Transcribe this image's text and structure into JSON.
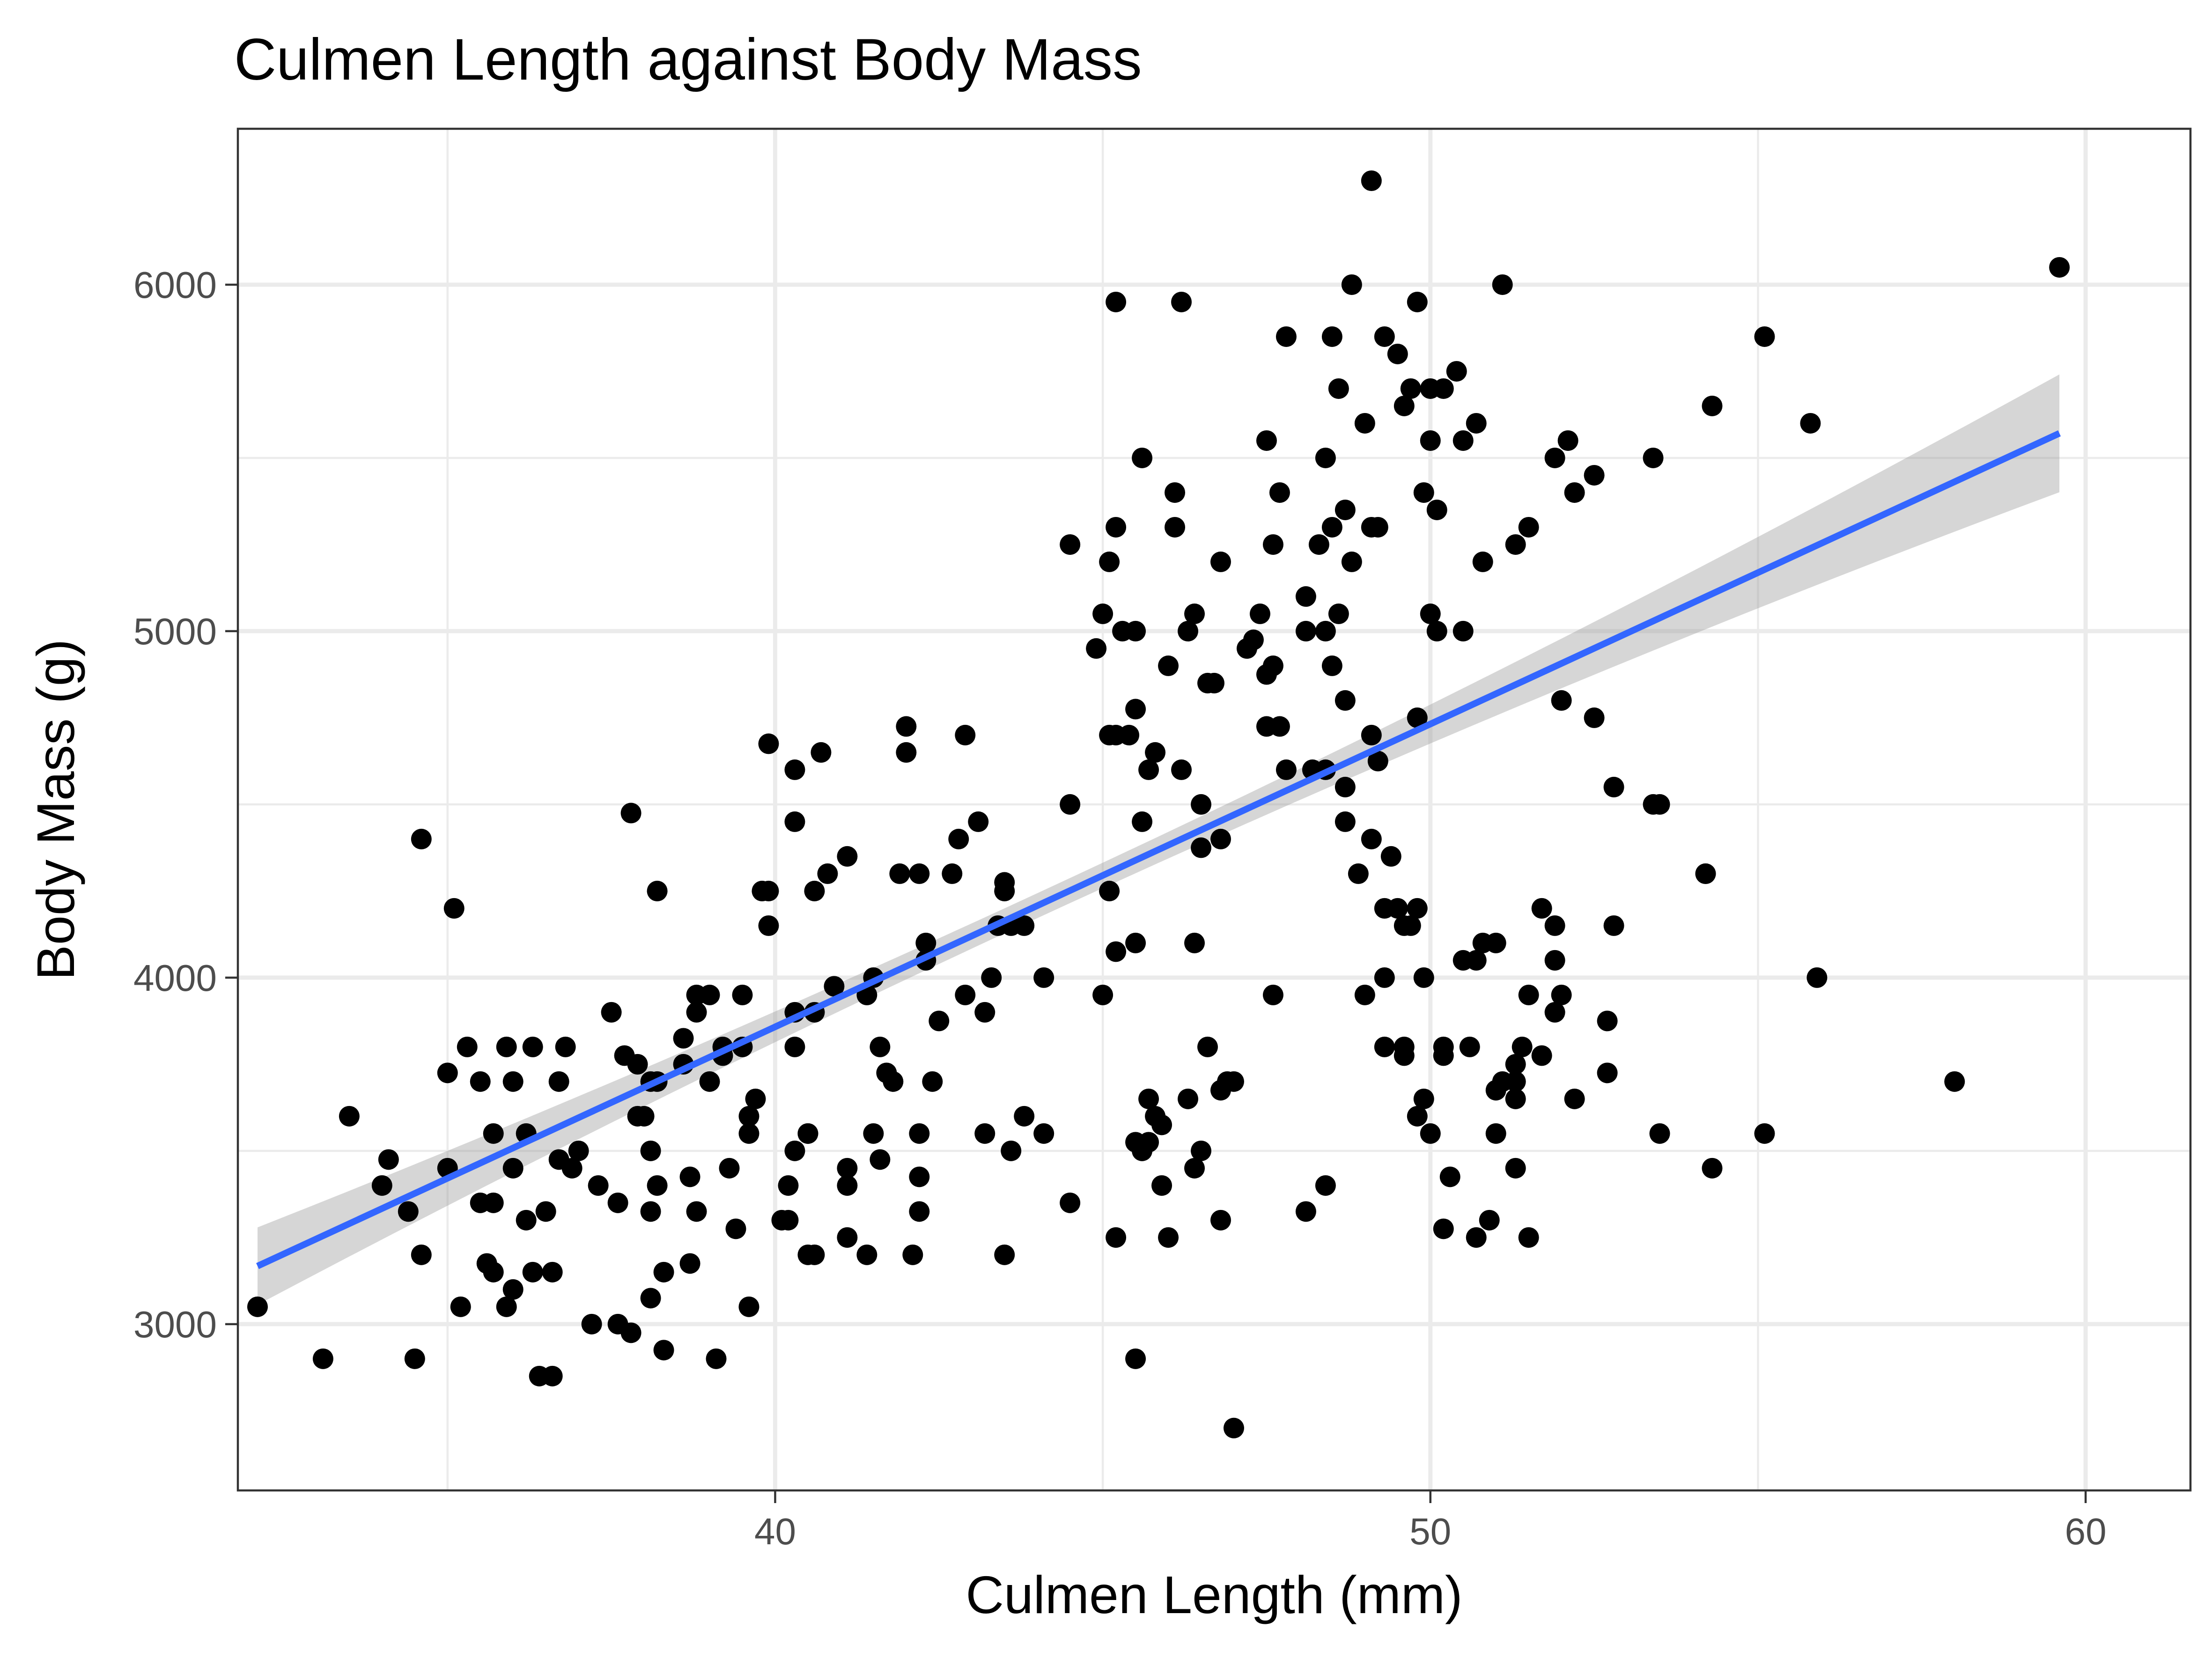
{
  "chart_data": {
    "type": "scatter",
    "title": "Culmen Length against Body Mass",
    "xlabel": "Culmen Length (mm)",
    "ylabel": "Body Mass (g)",
    "xlim": [
      31.8,
      61.6
    ],
    "ylim": [
      2520,
      6450
    ],
    "xticks": [
      40,
      50,
      60
    ],
    "xtick_labels": [
      "40",
      "50",
      "60"
    ],
    "yticks": [
      3000,
      4000,
      5000,
      6000
    ],
    "ytick_labels": [
      "3000",
      "4000",
      "5000",
      "6000"
    ],
    "grid": true,
    "legend": "none",
    "points": [
      [
        32.1,
        3050
      ],
      [
        33.1,
        2900
      ],
      [
        33.5,
        3600
      ],
      [
        34.0,
        3400
      ],
      [
        34.1,
        3475
      ],
      [
        34.4,
        3325
      ],
      [
        34.5,
        2900
      ],
      [
        34.6,
        4400
      ],
      [
        34.6,
        3200
      ],
      [
        35.0,
        3725
      ],
      [
        35.0,
        3450
      ],
      [
        35.1,
        4200
      ],
      [
        35.2,
        3050
      ],
      [
        35.3,
        3800
      ],
      [
        35.5,
        3700
      ],
      [
        35.5,
        3350
      ],
      [
        35.6,
        3175
      ],
      [
        35.7,
        3150
      ],
      [
        35.7,
        3550
      ],
      [
        35.7,
        3350
      ],
      [
        35.9,
        3050
      ],
      [
        35.9,
        3800
      ],
      [
        36.0,
        3100
      ],
      [
        36.0,
        3450
      ],
      [
        36.0,
        3700
      ],
      [
        36.2,
        3550
      ],
      [
        36.2,
        3300
      ],
      [
        36.3,
        3150
      ],
      [
        36.3,
        3800
      ],
      [
        36.4,
        2850
      ],
      [
        36.5,
        3325
      ],
      [
        36.6,
        2850
      ],
      [
        36.6,
        3150
      ],
      [
        36.7,
        3700
      ],
      [
        36.7,
        3475
      ],
      [
        36.8,
        3800
      ],
      [
        36.9,
        3450
      ],
      [
        37.0,
        3500
      ],
      [
        37.2,
        3000
      ],
      [
        37.3,
        3400
      ],
      [
        37.5,
        3900
      ],
      [
        37.6,
        3350
      ],
      [
        37.6,
        3000
      ],
      [
        37.7,
        3775
      ],
      [
        37.8,
        2975
      ],
      [
        37.8,
        4475
      ],
      [
        37.9,
        3750
      ],
      [
        37.9,
        3600
      ],
      [
        38.0,
        3600
      ],
      [
        38.1,
        3075
      ],
      [
        38.1,
        3500
      ],
      [
        38.1,
        3325
      ],
      [
        38.1,
        3700
      ],
      [
        38.2,
        3400
      ],
      [
        38.2,
        4250
      ],
      [
        38.2,
        3700
      ],
      [
        38.3,
        3150
      ],
      [
        38.3,
        2925
      ],
      [
        38.6,
        3750
      ],
      [
        38.6,
        3825
      ],
      [
        38.7,
        3425
      ],
      [
        38.7,
        3175
      ],
      [
        38.8,
        3950
      ],
      [
        38.8,
        3900
      ],
      [
        38.8,
        3325
      ],
      [
        39.0,
        3950
      ],
      [
        39.0,
        3700
      ],
      [
        39.1,
        2900
      ],
      [
        39.2,
        3800
      ],
      [
        39.2,
        3775
      ],
      [
        39.3,
        3450
      ],
      [
        39.4,
        3275
      ],
      [
        39.5,
        3800
      ],
      [
        39.5,
        3950
      ],
      [
        39.6,
        3050
      ],
      [
        39.6,
        3550
      ],
      [
        39.6,
        3600
      ],
      [
        39.7,
        3650
      ],
      [
        39.8,
        4250
      ],
      [
        39.9,
        4150
      ],
      [
        39.9,
        4675
      ],
      [
        39.9,
        4250
      ],
      [
        40.1,
        3300
      ],
      [
        40.2,
        3400
      ],
      [
        40.2,
        3300
      ],
      [
        40.3,
        3900
      ],
      [
        40.3,
        3800
      ],
      [
        40.3,
        4600
      ],
      [
        40.3,
        4450
      ],
      [
        40.3,
        3500
      ],
      [
        40.5,
        3550
      ],
      [
        40.5,
        3550
      ],
      [
        40.5,
        3200
      ],
      [
        40.6,
        3900
      ],
      [
        40.6,
        3200
      ],
      [
        40.6,
        4250
      ],
      [
        40.7,
        4650
      ],
      [
        40.8,
        4300
      ],
      [
        40.9,
        3975
      ],
      [
        41.1,
        3450
      ],
      [
        41.1,
        3400
      ],
      [
        41.1,
        3250
      ],
      [
        41.1,
        4350
      ],
      [
        41.4,
        3200
      ],
      [
        41.4,
        3950
      ],
      [
        41.5,
        4000
      ],
      [
        41.5,
        3550
      ],
      [
        41.6,
        3475
      ],
      [
        41.6,
        3800
      ],
      [
        41.7,
        3725
      ],
      [
        41.8,
        3700
      ],
      [
        41.9,
        4300
      ],
      [
        42.0,
        4650
      ],
      [
        42.0,
        4725
      ],
      [
        42.1,
        3200
      ],
      [
        42.2,
        3325
      ],
      [
        42.2,
        4300
      ],
      [
        42.2,
        3425
      ],
      [
        42.2,
        3550
      ],
      [
        42.3,
        4050
      ],
      [
        42.3,
        4100
      ],
      [
        42.4,
        3700
      ],
      [
        42.5,
        3875
      ],
      [
        42.7,
        4300
      ],
      [
        42.8,
        4400
      ],
      [
        42.9,
        4700
      ],
      [
        42.9,
        3950
      ],
      [
        43.1,
        4450
      ],
      [
        43.2,
        3900
      ],
      [
        43.2,
        3550
      ],
      [
        43.3,
        4000
      ],
      [
        43.4,
        4150
      ],
      [
        43.5,
        4250
      ],
      [
        43.5,
        3200
      ],
      [
        43.5,
        4275
      ],
      [
        43.6,
        3500
      ],
      [
        43.6,
        4150
      ],
      [
        43.8,
        4150
      ],
      [
        43.8,
        3600
      ],
      [
        44.1,
        4000
      ],
      [
        44.1,
        3550
      ],
      [
        44.5,
        3350
      ],
      [
        44.5,
        4500
      ],
      [
        44.9,
        4950
      ],
      [
        45.0,
        3950
      ],
      [
        45.1,
        4250
      ],
      [
        45.1,
        4700
      ],
      [
        45.2,
        4700
      ],
      [
        45.2,
        4075
      ],
      [
        45.3,
        5000
      ],
      [
        45.4,
        4700
      ],
      [
        45.5,
        4775
      ],
      [
        45.5,
        2900
      ],
      [
        45.5,
        4100
      ],
      [
        45.6,
        4450
      ],
      [
        45.7,
        4600
      ],
      [
        45.8,
        4650
      ],
      [
        45.9,
        3400
      ],
      [
        46.0,
        4900
      ],
      [
        46.4,
        4100
      ],
      [
        46.5,
        4375
      ],
      [
        46.8,
        4400
      ],
      [
        47.4,
        5050
      ],
      [
        47.5,
        4875
      ],
      [
        47.6,
        5250
      ],
      [
        48.1,
        5100
      ],
      [
        48.3,
        5250
      ],
      [
        48.4,
        5000
      ],
      [
        48.5,
        4900
      ],
      [
        48.6,
        5050
      ],
      [
        48.7,
        4550
      ],
      [
        48.7,
        4800
      ],
      [
        48.8,
        5200
      ],
      [
        49.1,
        4700
      ],
      [
        49.1,
        5300
      ],
      [
        49.2,
        5300
      ],
      [
        49.3,
        4200
      ],
      [
        49.4,
        4350
      ],
      [
        49.5,
        4200
      ],
      [
        49.6,
        4150
      ],
      [
        49.7,
        4150
      ],
      [
        49.8,
        4200
      ],
      [
        49.8,
        4750
      ],
      [
        49.9,
        3650
      ],
      [
        50.0,
        3550
      ],
      [
        50.0,
        5050
      ],
      [
        50.1,
        5000
      ],
      [
        50.2,
        3275
      ],
      [
        50.3,
        3425
      ],
      [
        50.5,
        5000
      ],
      [
        50.7,
        3250
      ],
      [
        50.8,
        4100
      ],
      [
        50.9,
        3300
      ],
      [
        51.1,
        3700
      ],
      [
        51.3,
        3450
      ],
      [
        51.4,
        3800
      ],
      [
        51.5,
        3250
      ],
      [
        51.7,
        4200
      ],
      [
        51.9,
        3900
      ],
      [
        52.0,
        4800
      ],
      [
        52.2,
        3650
      ],
      [
        52.5,
        4750
      ],
      [
        52.7,
        3875
      ],
      [
        52.8,
        4150
      ],
      [
        53.4,
        4500
      ],
      [
        53.5,
        3550
      ],
      [
        54.2,
        4300
      ],
      [
        54.3,
        3450
      ],
      [
        55.1,
        3550
      ],
      [
        55.8,
        5600
      ],
      [
        55.9,
        4000
      ],
      [
        58.0,
        3700
      ],
      [
        59.6,
        6050
      ],
      [
        46.1,
        5400
      ],
      [
        46.2,
        4600
      ],
      [
        46.3,
        5000
      ],
      [
        46.5,
        4500
      ],
      [
        46.6,
        4850
      ],
      [
        46.7,
        4850
      ],
      [
        47.0,
        2700
      ],
      [
        47.2,
        4950
      ],
      [
        47.3,
        4975
      ],
      [
        47.5,
        5550
      ],
      [
        47.6,
        4900
      ],
      [
        47.7,
        5400
      ],
      [
        47.8,
        5850
      ],
      [
        48.1,
        5000
      ],
      [
        48.2,
        4600
      ],
      [
        48.4,
        5500
      ],
      [
        48.4,
        4600
      ],
      [
        48.5,
        5300
      ],
      [
        48.6,
        5700
      ],
      [
        48.7,
        5350
      ],
      [
        49.0,
        5600
      ],
      [
        49.1,
        6300
      ],
      [
        49.2,
        4625
      ],
      [
        49.3,
        5850
      ],
      [
        49.5,
        5800
      ],
      [
        49.6,
        5650
      ],
      [
        49.8,
        5950
      ],
      [
        49.9,
        5400
      ],
      [
        50.0,
        5550
      ],
      [
        50.1,
        5350
      ],
      [
        50.2,
        5700
      ],
      [
        50.4,
        5750
      ],
      [
        50.5,
        5550
      ],
      [
        50.7,
        5600
      ],
      [
        50.8,
        5200
      ],
      [
        51.1,
        6000
      ],
      [
        51.3,
        5250
      ],
      [
        51.5,
        5300
      ],
      [
        51.9,
        5500
      ],
      [
        52.1,
        5550
      ],
      [
        52.2,
        5400
      ],
      [
        52.5,
        5450
      ],
      [
        53.4,
        5500
      ],
      [
        54.3,
        5650
      ],
      [
        55.1,
        5850
      ],
      [
        46.2,
        5950
      ],
      [
        45.2,
        5950
      ],
      [
        48.8,
        6000
      ],
      [
        48.5,
        5850
      ],
      [
        49.7,
        5700
      ],
      [
        50.0,
        5700
      ],
      [
        45.2,
        5300
      ],
      [
        46.1,
        5300
      ],
      [
        45.1,
        5200
      ],
      [
        46.8,
        5200
      ],
      [
        44.5,
        5250
      ],
      [
        45.5,
        5000
      ],
      [
        45.0,
        5050
      ],
      [
        46.4,
        5050
      ],
      [
        45.6,
        5500
      ],
      [
        47.5,
        4725
      ],
      [
        47.8,
        4600
      ],
      [
        47.7,
        4725
      ],
      [
        48.7,
        4450
      ],
      [
        49.3,
        4000
      ],
      [
        49.1,
        4400
      ],
      [
        48.9,
        4300
      ],
      [
        47.6,
        3950
      ],
      [
        49.9,
        4000
      ],
      [
        50.5,
        4050
      ],
      [
        50.7,
        4050
      ],
      [
        51.0,
        4100
      ],
      [
        51.9,
        4150
      ],
      [
        51.9,
        4050
      ],
      [
        52.0,
        3950
      ],
      [
        51.5,
        3950
      ],
      [
        49.6,
        3800
      ],
      [
        50.2,
        3800
      ],
      [
        50.2,
        3775
      ],
      [
        50.6,
        3800
      ],
      [
        51.0,
        3675
      ],
      [
        51.3,
        3650
      ],
      [
        51.3,
        3700
      ],
      [
        51.7,
        3775
      ],
      [
        51.3,
        3750
      ],
      [
        51.0,
        3550
      ],
      [
        49.8,
        3600
      ],
      [
        49.3,
        3800
      ],
      [
        49.0,
        3950
      ],
      [
        48.4,
        3400
      ],
      [
        48.1,
        3325
      ],
      [
        46.0,
        3250
      ],
      [
        45.2,
        3250
      ],
      [
        46.4,
        3450
      ],
      [
        46.5,
        3500
      ],
      [
        46.9,
        3700
      ],
      [
        47.0,
        3700
      ],
      [
        46.6,
        3800
      ],
      [
        46.3,
        3650
      ],
      [
        45.8,
        3600
      ],
      [
        45.7,
        3650
      ],
      [
        45.5,
        3525
      ],
      [
        45.6,
        3500
      ],
      [
        45.7,
        3525
      ],
      [
        45.9,
        3575
      ],
      [
        46.8,
        3675
      ],
      [
        46.8,
        3300
      ],
      [
        52.7,
        3725
      ],
      [
        52.8,
        4550
      ],
      [
        53.5,
        4500
      ],
      [
        54.2,
        4300
      ],
      [
        49.6,
        3775
      ]
    ],
    "fit": {
      "method": "linear regression",
      "x_range": [
        32.1,
        59.6
      ],
      "intercept": 362,
      "slope": 87.4,
      "ci_half_width_ends": 170,
      "ci_half_width_center": 36,
      "x_center": 43.9,
      "line_color": "#3366ff",
      "band_color": "#999999"
    }
  },
  "colors": {
    "point": "#000000",
    "line": "#3366ff",
    "band": "#999999",
    "grid": "#ebebeb",
    "border": "#333333"
  }
}
